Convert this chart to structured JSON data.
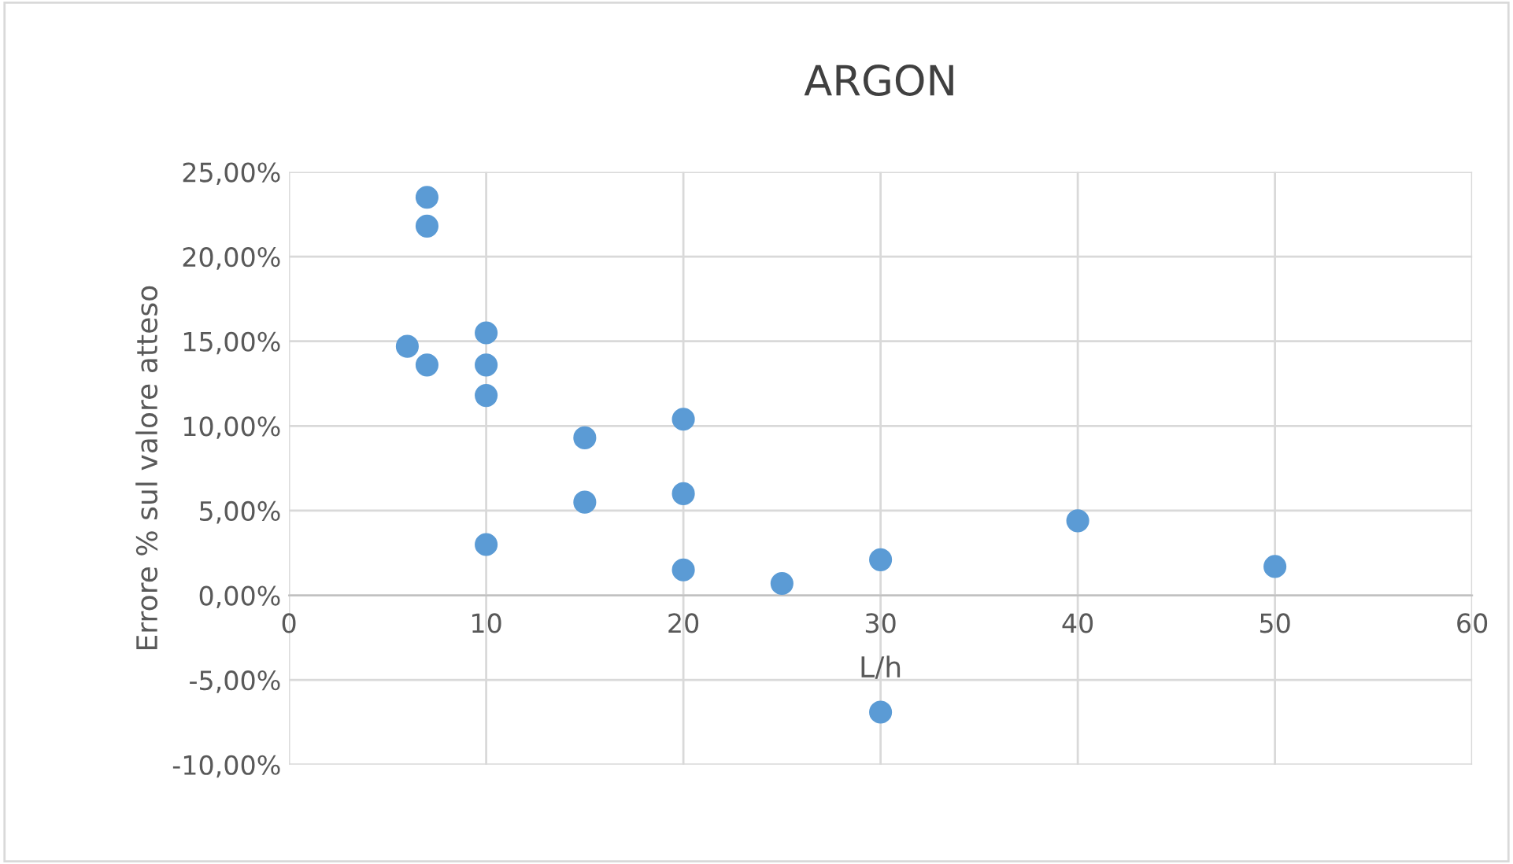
{
  "chart_data": {
    "type": "scatter",
    "title": "ARGON",
    "xlabel": "L/h",
    "ylabel": "Errore % sul valore atteso",
    "x": [
      7,
      7,
      6,
      7,
      10,
      10,
      10,
      10,
      15,
      15,
      20,
      20,
      20,
      25,
      30,
      30,
      40,
      50
    ],
    "series": [
      {
        "color": "#5b9bd5",
        "values": [
          23.5,
          21.8,
          14.7,
          13.6,
          15.5,
          13.6,
          11.8,
          3.0,
          9.3,
          5.5,
          10.4,
          6.0,
          1.5,
          0.7,
          2.1,
          -6.9,
          4.4,
          1.7
        ]
      }
    ],
    "xlim": [
      0,
      60
    ],
    "xticks": [
      0,
      10,
      20,
      30,
      40,
      50,
      60
    ],
    "ylim": [
      -10,
      25
    ],
    "yticks": [
      {
        "value": -10,
        "label": "-10,00%"
      },
      {
        "value": -5,
        "label": "-5,00%"
      },
      {
        "value": 0,
        "label": "0,00%"
      },
      {
        "value": 5,
        "label": "5,00%"
      },
      {
        "value": 10,
        "label": "10,00%"
      },
      {
        "value": 15,
        "label": "15,00%"
      },
      {
        "value": 20,
        "label": "20,00%"
      },
      {
        "value": 25,
        "label": "25,00%"
      }
    ],
    "grid": true,
    "marker": "circle",
    "legend": false
  }
}
